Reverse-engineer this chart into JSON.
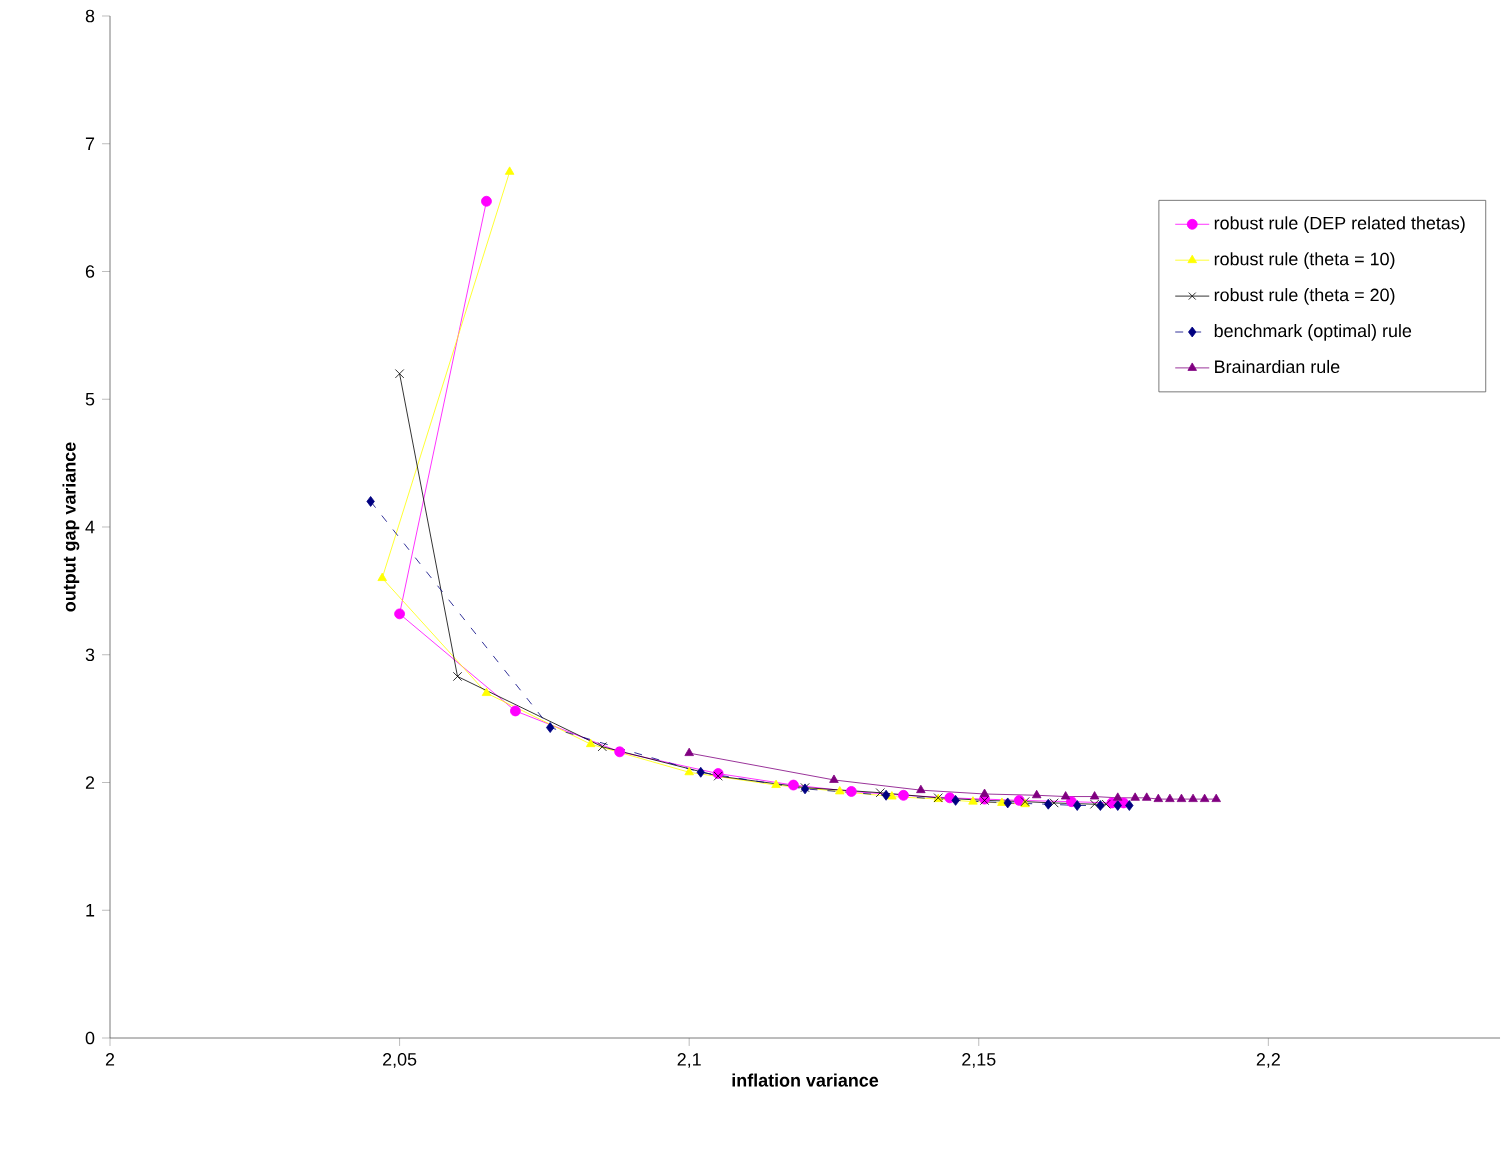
{
  "chart_data": {
    "type": "line",
    "xlabel": "inflation variance",
    "ylabel": "output gap variance",
    "xlim": [
      2,
      2.24
    ],
    "ylim": [
      0,
      8
    ],
    "xticks": [
      2,
      {
        "value": 2.05,
        "label": "2,05"
      },
      {
        "value": 2.1,
        "label": "2,1"
      },
      {
        "value": 2.15,
        "label": "2,15"
      },
      {
        "value": 2.2,
        "label": "2,2"
      }
    ],
    "yticks": [
      0,
      1,
      2,
      3,
      4,
      5,
      6,
      7,
      8
    ],
    "grid": false,
    "legend": "top right",
    "series": [
      {
        "name": "robust rule (DEP related  thetas)",
        "color": "#ff00ff",
        "marker": "circle",
        "line_style": "solid",
        "x": [
          2.065,
          2.05,
          2.07,
          2.088,
          2.105,
          2.118,
          2.128,
          2.137,
          2.145,
          2.151,
          2.157,
          2.162,
          2.166,
          2.17,
          2.173,
          2.175
        ],
        "values": [
          6.55,
          3.32,
          2.56,
          2.24,
          2.07,
          1.98,
          1.93,
          1.9,
          1.88,
          1.87,
          1.86,
          null,
          1.85,
          null,
          1.84,
          1.84
        ]
      },
      {
        "name": "robust rule (theta = 10)",
        "color": "#ffff00",
        "marker": "triangle",
        "line_style": "solid",
        "x": [
          2.069,
          2.047,
          2.065,
          2.083,
          2.1,
          2.115,
          2.126,
          2.135,
          2.143,
          2.149,
          2.154,
          2.158
        ],
        "values": [
          6.78,
          3.6,
          2.7,
          2.3,
          2.08,
          1.98,
          1.93,
          1.89,
          1.87,
          1.85,
          1.84,
          1.83
        ]
      },
      {
        "name": "robust rule (theta = 20)",
        "color": "#000000",
        "marker": "cross",
        "line_style": "solid",
        "x": [
          2.05,
          2.06,
          2.085,
          2.105,
          2.12,
          2.133,
          2.143,
          2.151,
          2.158,
          2.163,
          2.167,
          2.17,
          2.172
        ],
        "values": [
          5.2,
          2.83,
          2.28,
          2.05,
          1.96,
          1.92,
          1.88,
          1.86,
          1.85,
          1.84,
          null,
          1.83,
          1.83
        ]
      },
      {
        "name": "benchmark (optimal) rule",
        "color": "#000080",
        "marker": "diamond",
        "line_style": "dashed",
        "x": [
          2.045,
          2.076,
          2.102,
          2.12,
          2.134,
          2.146,
          2.155,
          2.162,
          2.167,
          2.171,
          2.174,
          2.176
        ],
        "values": [
          4.2,
          2.43,
          2.08,
          1.95,
          1.9,
          1.86,
          1.84,
          1.83,
          1.82,
          1.82,
          1.82,
          1.82
        ]
      },
      {
        "name": "Brainardian rule",
        "color": "#800080",
        "marker": "triangle",
        "line_style": "solid",
        "x": [
          2.1,
          2.125,
          2.14,
          2.151,
          2.16,
          2.165,
          2.17,
          2.174,
          2.177,
          2.179,
          2.181,
          2.183,
          2.185,
          2.187,
          2.189,
          2.191
        ],
        "values": [
          2.23,
          2.02,
          1.94,
          1.91,
          1.9,
          1.89,
          1.89,
          1.88,
          1.88,
          1.88,
          1.87,
          1.87,
          1.87,
          1.87,
          1.87,
          1.87
        ]
      }
    ]
  }
}
